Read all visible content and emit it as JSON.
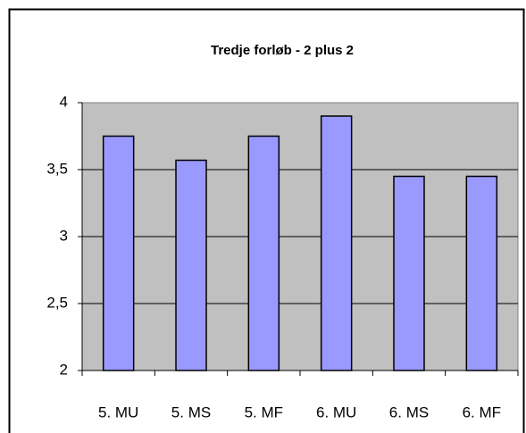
{
  "chart_data": {
    "type": "bar",
    "title": "Tredje forløb - 2 plus 2",
    "categories": [
      "5. MU",
      "5. MS",
      "5. MF",
      "6. MU",
      "6. MS",
      "6. MF"
    ],
    "values": [
      3.75,
      3.57,
      3.75,
      3.9,
      3.45,
      3.45
    ],
    "color": "#9999ff",
    "ylim": [
      2,
      4
    ],
    "yticks": [
      2,
      {
        "value": 2.5,
        "label": "2,5"
      },
      3,
      {
        "value": 3.5,
        "label": "3,5"
      },
      4
    ],
    "grid": true
  }
}
